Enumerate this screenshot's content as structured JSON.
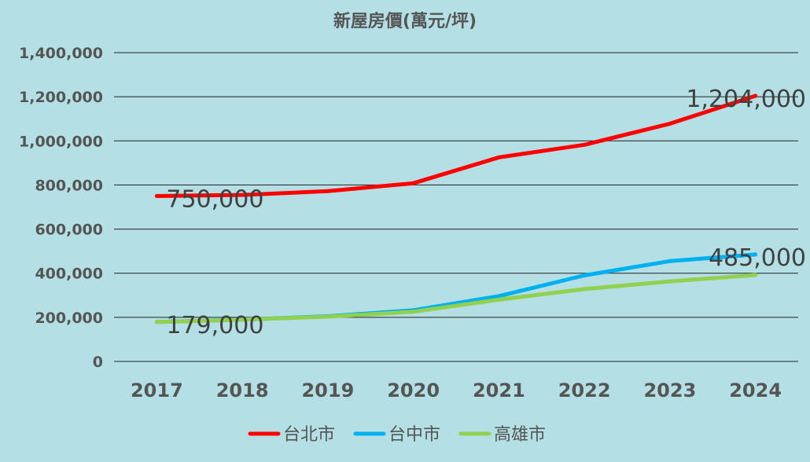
{
  "chart_data": {
    "type": "line",
    "title": "新屋房價(萬元/坪)",
    "xlabel": "",
    "ylabel": "",
    "categories": [
      "2017",
      "2018",
      "2019",
      "2020",
      "2021",
      "2022",
      "2023",
      "2024"
    ],
    "ylim": [
      0,
      1400000
    ],
    "yticks": [
      0,
      200000,
      400000,
      600000,
      800000,
      1000000,
      1200000,
      1400000
    ],
    "ytick_labels": [
      "0",
      "200,000",
      "400,000",
      "600,000",
      "800,000",
      "1,000,000",
      "1,200,000",
      "1,400,000"
    ],
    "grid": true,
    "legend_position": "bottom",
    "series": [
      {
        "name": "台北市",
        "color": "#ff0000",
        "values": [
          750000,
          755000,
          772000,
          808000,
          925000,
          982000,
          1078000,
          1204000
        ]
      },
      {
        "name": "台中市",
        "color": "#00b0f0",
        "values": [
          179000,
          190000,
          205000,
          232000,
          296000,
          390000,
          455000,
          485000
        ]
      },
      {
        "name": "高雄市",
        "color": "#92d050",
        "values": [
          179000,
          189000,
          203000,
          225000,
          280000,
          328000,
          363000,
          392000
        ]
      }
    ],
    "data_labels": [
      {
        "series": 0,
        "index": 0,
        "text": "750,000"
      },
      {
        "series": 0,
        "index": 7,
        "text": "1,204,000"
      },
      {
        "series": 1,
        "index": 0,
        "text": "179,000"
      },
      {
        "series": 1,
        "index": 7,
        "text": "485,000"
      }
    ]
  }
}
